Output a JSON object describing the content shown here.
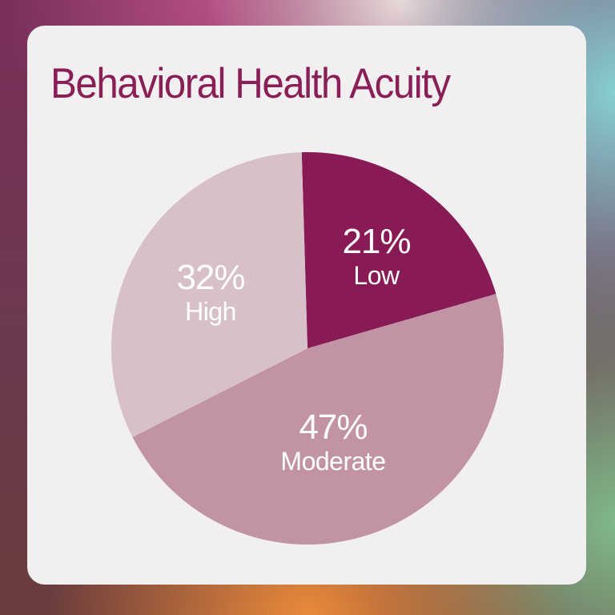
{
  "title": "Behavioral Health Acuity",
  "colors": {
    "title": "#8a1f58",
    "card": "#f1eff0",
    "low": "#881a55",
    "moderate": "#c293a4",
    "high": "#d8c0cb",
    "label": "#ffffff"
  },
  "slices": [
    {
      "pct": "21%",
      "label": "Low"
    },
    {
      "pct": "47%",
      "label": "Moderate"
    },
    {
      "pct": "32%",
      "label": "High"
    }
  ],
  "chart_data": {
    "type": "pie",
    "title": "Behavioral Health Acuity",
    "categories": [
      "Low",
      "Moderate",
      "High"
    ],
    "values": [
      21,
      47,
      32
    ],
    "unit": "%",
    "colors": [
      "#881a55",
      "#c293a4",
      "#d8c0cb"
    ],
    "start_angle_deg": -1.7,
    "direction": "clockwise",
    "legend": "none (inline labels)"
  }
}
